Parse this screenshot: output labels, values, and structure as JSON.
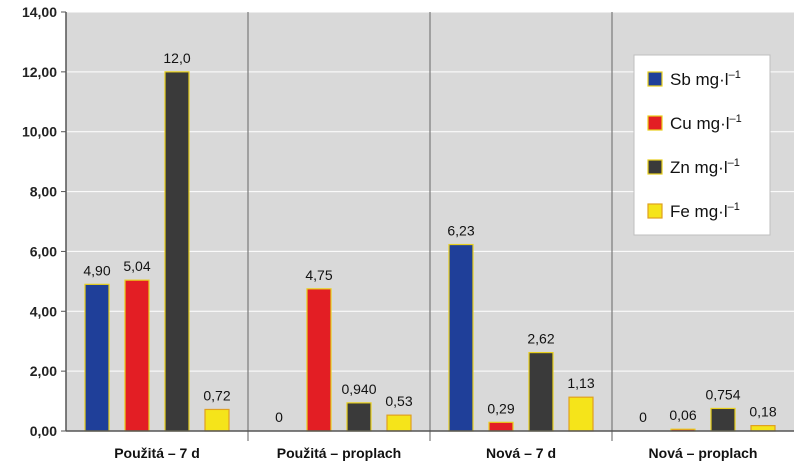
{
  "chart_data": {
    "type": "bar",
    "categories": [
      "Použitá – 7 d",
      "Použitá – proplach",
      "Nová – 7 d",
      "Nová – proplach"
    ],
    "series": [
      {
        "name": "Sb mg·l",
        "unit_superscript": "–1",
        "color": "#1f3f99",
        "border": "#e8cf1c",
        "values": [
          4.9,
          0,
          6.23,
          0
        ],
        "labels": [
          "4,90",
          "0",
          "6,23",
          "0"
        ]
      },
      {
        "name": "Cu mg·l",
        "unit_superscript": "–1",
        "color": "#e31e24",
        "border": "#e8cf1c",
        "values": [
          5.04,
          4.75,
          0.29,
          0.06
        ],
        "labels": [
          "5,04",
          "4,75",
          "0,29",
          "0,06"
        ]
      },
      {
        "name": "Zn mg·l",
        "unit_superscript": "–1",
        "color": "#3a3a3a",
        "border": "#e8cf1c",
        "values": [
          12.0,
          0.94,
          2.62,
          0.754
        ],
        "labels": [
          "12,0",
          "0,940",
          "2,62",
          "0,754"
        ]
      },
      {
        "name": "Fe mg·l",
        "unit_superscript": "–1",
        "color": "#f5e41a",
        "border": "#e0a020",
        "values": [
          0.72,
          0.53,
          1.13,
          0.18
        ],
        "labels": [
          "0,72",
          "0,53",
          "1,13",
          "0,18"
        ]
      }
    ],
    "ylim": [
      0,
      14
    ],
    "yticks": [
      "0,00",
      "2,00",
      "4,00",
      "6,00",
      "8,00",
      "10,00",
      "12,00",
      "14,00"
    ],
    "grid": true,
    "legend_position": "top-right",
    "plot_background": "#d9d9d9",
    "title": "",
    "xlabel": "",
    "ylabel": ""
  }
}
